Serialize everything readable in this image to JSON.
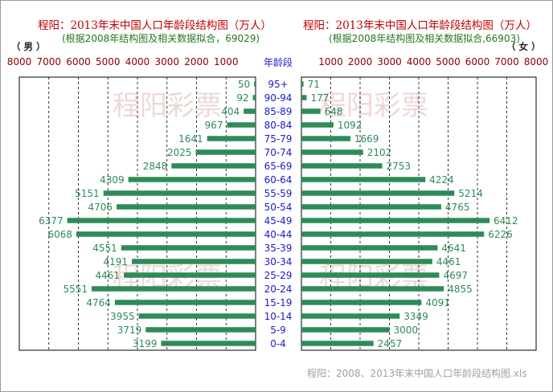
{
  "left_title": "程阳：2013年末中国人口年龄段结构图（万人）",
  "left_subtitle": "(根据2008年结构图及相关数据拟合，69029)",
  "right_title": "程阳：2013年末中国人口年龄段结构图（万人）",
  "right_subtitle": "(根据2008年结构图及相关数据拟合,66903)",
  "male_label": "（ 男 ）",
  "female_label": "（ 女 ）",
  "center_axis_title": "年龄段",
  "watermark_text": "程阳彩票",
  "footer": "程阳：2008、2013年末中国人口年龄段结构图.xls",
  "colors": {
    "bar": "#2e8b57",
    "title": "#c00000",
    "category": "#1a1acc",
    "axis": "#8b0000",
    "value_label": "#2e8b57"
  },
  "chart_data": [
    {
      "type": "bar",
      "orientation": "horizontal",
      "direction": "reversed",
      "title": "程阳：2013年末中国人口年龄段结构图（万人）",
      "subtitle": "(根据2008年结构图及相关数据拟合，69029)",
      "series": [
        {
          "name": "男",
          "values": [
            50,
            92,
            404,
            967,
            1641,
            2025,
            2848,
            4309,
            5151,
            4706,
            6377,
            6068,
            4551,
            4191,
            4461,
            5551,
            4764,
            3955,
            3719,
            3199
          ]
        }
      ],
      "categories": [
        "95+",
        "90-94",
        "85-89",
        "80-84",
        "75-79",
        "70-74",
        "65-69",
        "60-64",
        "55-59",
        "50-54",
        "45-49",
        "40-44",
        "35-39",
        "30-34",
        "25-29",
        "20-24",
        "15-19",
        "10-14",
        "5-9",
        "0-4"
      ],
      "xlim": [
        0,
        8000
      ],
      "ticks": [
        "8000",
        "7000",
        "6000",
        "5000",
        "4000",
        "3000",
        "2000",
        "1000"
      ],
      "grid": true
    },
    {
      "type": "bar",
      "orientation": "horizontal",
      "title": "程阳：2013年末中国人口年龄段结构图（万人）",
      "subtitle": "(根据2008年结构图及相关数据拟合,66903)",
      "series": [
        {
          "name": "女",
          "values": [
            71,
            177,
            648,
            1092,
            1669,
            2102,
            2753,
            4224,
            5214,
            4765,
            6412,
            6226,
            4641,
            4461,
            4697,
            4855,
            4091,
            3349,
            3000,
            2457
          ]
        }
      ],
      "categories": [
        "95+",
        "90-94",
        "85-89",
        "80-84",
        "75-79",
        "70-74",
        "65-69",
        "60-64",
        "55-59",
        "50-54",
        "45-49",
        "40-44",
        "35-39",
        "30-34",
        "25-29",
        "20-24",
        "15-19",
        "10-14",
        "5-9",
        "0-4"
      ],
      "xlim": [
        0,
        8000
      ],
      "ticks": [
        "1000",
        "2000",
        "3000",
        "4000",
        "5000",
        "6000",
        "7000",
        "8000"
      ],
      "grid": true
    }
  ]
}
